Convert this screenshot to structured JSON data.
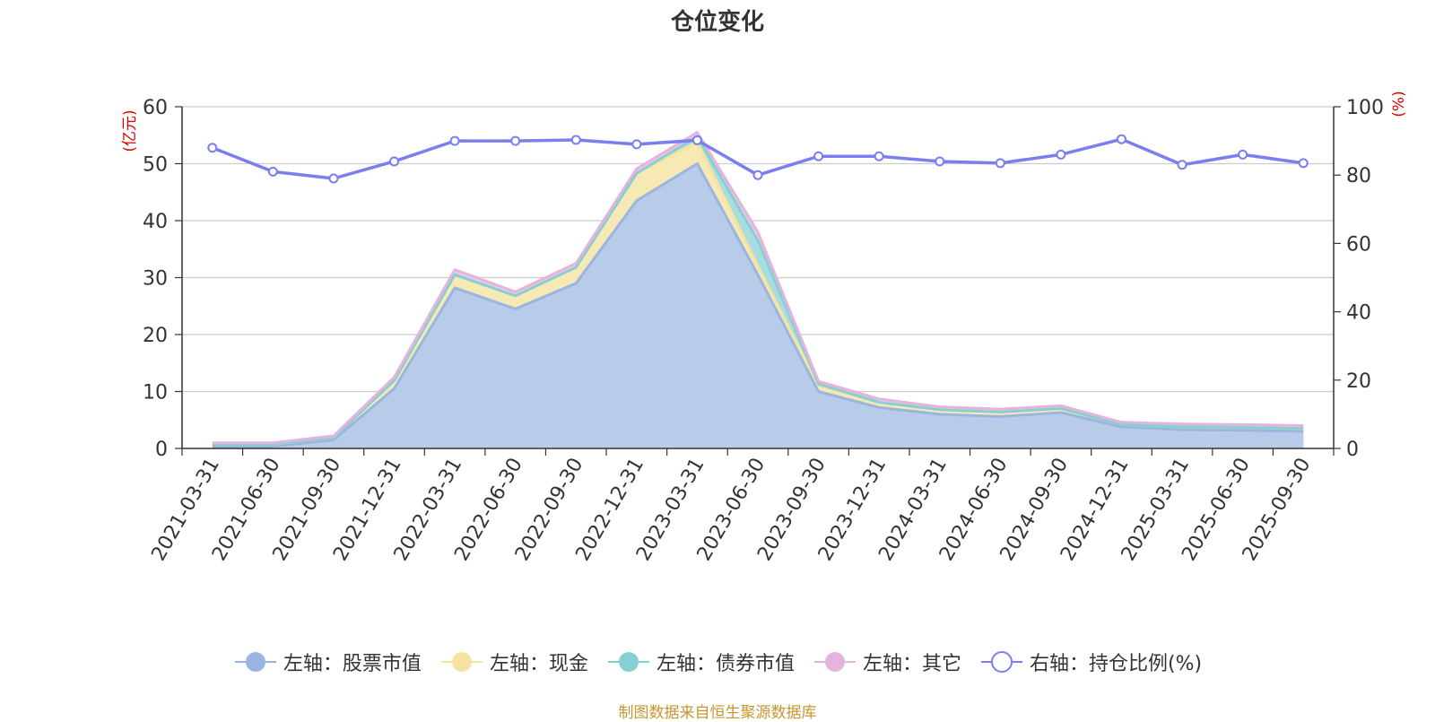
{
  "chart_data": {
    "type": "area",
    "title": "仓位变化",
    "left_axis_unit": "(亿元)",
    "right_axis_unit": "(%)",
    "left_ylim": [
      0,
      60
    ],
    "left_ticks": [
      "0",
      "10",
      "20",
      "30",
      "40",
      "50",
      "60"
    ],
    "right_ylim": [
      0,
      100
    ],
    "right_ticks": [
      "0",
      "20",
      "40",
      "60",
      "80",
      "100"
    ],
    "grid": true,
    "stacked": true,
    "categories": [
      "2021-03-31",
      "2021-06-30",
      "2021-09-30",
      "2021-12-31",
      "2022-03-31",
      "2022-06-30",
      "2022-09-30",
      "2022-12-31",
      "2023-03-31",
      "2023-06-30",
      "2023-09-30",
      "2023-12-31",
      "2024-03-31",
      "2024-06-30",
      "2024-09-30",
      "2024-12-31",
      "2025-03-31",
      "2025-06-30",
      "2025-09-30"
    ],
    "series": [
      {
        "name": "左轴：股票市值",
        "axis": "left",
        "type": "area",
        "color": "#9ab5e0",
        "fill": "#b8cbe9",
        "values": [
          0.3,
          0.4,
          1.5,
          10.5,
          28.2,
          24.5,
          29.0,
          43.5,
          50.0,
          30.5,
          10.0,
          7.2,
          6.0,
          5.6,
          6.3,
          3.8,
          3.3,
          3.2,
          3.0
        ]
      },
      {
        "name": "左轴：现金",
        "axis": "left",
        "type": "area",
        "color": "#f6e3a1",
        "fill": "#f7e9b3",
        "values": [
          0.4,
          0.3,
          0.4,
          1.4,
          2.3,
          2.3,
          2.8,
          4.8,
          3.8,
          1.5,
          1.0,
          0.9,
          0.8,
          0.8,
          0.7,
          0.4,
          0.5,
          0.5,
          0.5
        ]
      },
      {
        "name": "左轴：债券市值",
        "axis": "left",
        "type": "area",
        "color": "#86d0d4",
        "fill": "#a9dcdf",
        "values": [
          0.0,
          0.0,
          0.0,
          0.0,
          0.0,
          0.0,
          0.0,
          0.0,
          1.0,
          4.5,
          0.3,
          0.0,
          0.0,
          0.0,
          0.0,
          0.0,
          0.0,
          0.0,
          0.0
        ]
      },
      {
        "name": "左轴：其它",
        "axis": "left",
        "type": "area",
        "color": "#e4b4dc",
        "fill": "#ecc8e6",
        "values": [
          0.3,
          0.3,
          0.3,
          0.6,
          0.9,
          0.7,
          0.7,
          0.8,
          0.7,
          1.5,
          0.5,
          0.6,
          0.5,
          0.5,
          0.5,
          0.4,
          0.5,
          0.5,
          0.5
        ]
      },
      {
        "name": "右轴：持仓比例(%)",
        "axis": "right",
        "type": "line",
        "color": "#7b7ef0",
        "values": [
          88.0,
          81.0,
          79.0,
          84.0,
          90.0,
          90.0,
          90.3,
          89.0,
          90.2,
          80.0,
          85.5,
          85.5,
          84.0,
          83.5,
          86.0,
          90.5,
          83.0,
          86.0,
          83.5
        ]
      }
    ]
  },
  "source_note": "制图数据来自恒生聚源数据库"
}
